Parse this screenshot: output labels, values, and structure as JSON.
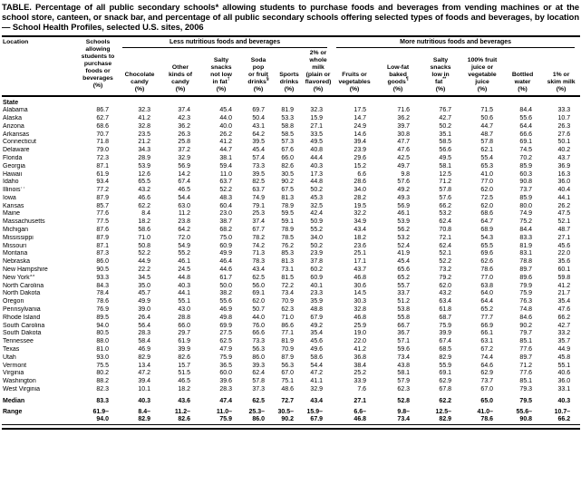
{
  "title": "TABLE. Percentage of all public secondary schools* allowing students to purchase foods and beverages from vending machines or at the school store, canteen, or snack bar, and percentage of all public secondary schools offering selected types of foods and beverages, by location — School Health Profiles, selected U.S. sites, 2006",
  "table": {
    "location_header": "Location",
    "schools_header": "Schools\nallowing\nstudents to\npurchase\nfoods or\nbeverages\n(%)",
    "groups": [
      {
        "label": "Less nutritious foods and beverages"
      },
      {
        "label": "More nutritious foods and beverages"
      }
    ],
    "columns": [
      {
        "id": "chocolate-candy",
        "lines": [
          "Chocolate",
          "candy",
          "(%)"
        ]
      },
      {
        "id": "other-candy",
        "lines": [
          "Other",
          "kinds of",
          "candy",
          "(%)"
        ]
      },
      {
        "id": "salty-snacks-not-low-fat",
        "lines": [
          "Salty",
          "snacks",
          "not low",
          "in fat†",
          "(%)"
        ]
      },
      {
        "id": "soda-pop-fruit-drinks",
        "lines": [
          "Soda",
          "pop",
          "or fruit",
          "drinks§",
          "(%)"
        ]
      },
      {
        "id": "sports-drinks",
        "lines": [
          "Sports",
          "drinks",
          "(%)"
        ]
      },
      {
        "id": "two-pct-whole-milk",
        "lines": [
          "2% or",
          "whole",
          "milk",
          "(plain or",
          "flavored)",
          "(%)"
        ]
      },
      {
        "id": "fruits-vegetables",
        "lines": [
          "Fruits or",
          "vegetables",
          "(%)"
        ]
      },
      {
        "id": "low-fat-baked-goods",
        "lines": [
          "Low-fat",
          "baked",
          "goods¶",
          "(%)"
        ]
      },
      {
        "id": "salty-snacks-low-fat",
        "lines": [
          "Salty",
          "snacks",
          "low in",
          "fat**",
          "(%)"
        ]
      },
      {
        "id": "fruit-vegetable-juice",
        "lines": [
          "100% fruit",
          "juice or",
          "vegetable",
          "juice",
          "(%)"
        ]
      },
      {
        "id": "bottled-water",
        "lines": [
          "Bottled",
          "water",
          "(%)"
        ]
      },
      {
        "id": "skim-milk",
        "lines": [
          "1% or",
          "skim milk",
          "(%)"
        ]
      }
    ],
    "section_label": "State",
    "rows": [
      {
        "location": "Alabama",
        "values": [
          "86.7",
          "32.3",
          "37.4",
          "45.4",
          "69.7",
          "81.9",
          "32.3",
          "17.5",
          "71.6",
          "76.7",
          "71.5",
          "84.4",
          "33.3"
        ]
      },
      {
        "location": "Alaska",
        "values": [
          "62.7",
          "41.2",
          "42.3",
          "44.0",
          "50.4",
          "53.3",
          "15.9",
          "14.7",
          "36.2",
          "42.7",
          "50.6",
          "55.6",
          "10.7"
        ]
      },
      {
        "location": "Arizona",
        "values": [
          "68.6",
          "32.8",
          "36.2",
          "40.0",
          "43.1",
          "58.8",
          "27.1",
          "24.9",
          "39.7",
          "50.2",
          "44.7",
          "64.4",
          "26.3"
        ]
      },
      {
        "location": "Arkansas",
        "values": [
          "70.7",
          "23.5",
          "26.3",
          "26.2",
          "64.2",
          "58.5",
          "33.5",
          "14.6",
          "30.8",
          "35.1",
          "48.7",
          "66.6",
          "27.6"
        ]
      },
      {
        "location": "Connecticut",
        "values": [
          "71.8",
          "21.2",
          "25.8",
          "41.2",
          "39.5",
          "57.3",
          "49.5",
          "39.4",
          "47.7",
          "58.5",
          "57.8",
          "69.1",
          "50.1"
        ]
      },
      {
        "location": "Delaware",
        "values": [
          "79.0",
          "34.3",
          "37.2",
          "44.7",
          "45.4",
          "67.6",
          "40.8",
          "23.9",
          "47.6",
          "56.6",
          "62.1",
          "74.5",
          "40.2"
        ]
      },
      {
        "location": "Florida",
        "values": [
          "72.3",
          "28.9",
          "32.9",
          "38.1",
          "57.4",
          "66.0",
          "44.4",
          "29.6",
          "42.5",
          "49.5",
          "55.4",
          "70.2",
          "43.7"
        ]
      },
      {
        "location": "Georgia",
        "values": [
          "87.1",
          "53.9",
          "56.9",
          "59.4",
          "73.3",
          "82.6",
          "40.3",
          "15.2",
          "49.7",
          "58.1",
          "65.3",
          "85.9",
          "36.9"
        ]
      },
      {
        "location": "Hawaii",
        "values": [
          "61.9",
          "12.6",
          "14.2",
          "11.0",
          "39.5",
          "30.5",
          "17.3",
          "6.6",
          "9.8",
          "12.5",
          "41.0",
          "60.3",
          "16.3"
        ]
      },
      {
        "location": "Idaho",
        "values": [
          "93.4",
          "65.5",
          "67.4",
          "63.7",
          "82.5",
          "90.2",
          "44.8",
          "28.6",
          "57.6",
          "71.2",
          "77.0",
          "90.8",
          "36.0"
        ]
      },
      {
        "location": "Illinois††",
        "values": [
          "77.2",
          "43.2",
          "46.5",
          "52.2",
          "63.7",
          "67.5",
          "50.2",
          "34.0",
          "49.2",
          "57.8",
          "62.0",
          "73.7",
          "40.4"
        ]
      },
      {
        "location": "Iowa",
        "values": [
          "87.9",
          "46.6",
          "54.4",
          "48.3",
          "74.9",
          "81.3",
          "45.3",
          "28.2",
          "49.3",
          "57.6",
          "72.5",
          "85.9",
          "44.1"
        ]
      },
      {
        "location": "Kansas",
        "values": [
          "85.7",
          "62.2",
          "63.0",
          "60.4",
          "79.1",
          "78.9",
          "32.5",
          "19.5",
          "56.9",
          "66.2",
          "62.0",
          "80.0",
          "26.2"
        ]
      },
      {
        "location": "Maine",
        "values": [
          "77.6",
          "8.4",
          "11.2",
          "23.0",
          "25.3",
          "59.5",
          "42.4",
          "32.2",
          "46.1",
          "53.2",
          "68.6",
          "74.9",
          "47.5"
        ]
      },
      {
        "location": "Massachusetts",
        "values": [
          "77.5",
          "18.2",
          "23.8",
          "38.7",
          "37.4",
          "59.1",
          "50.9",
          "34.9",
          "53.9",
          "62.4",
          "64.7",
          "75.2",
          "52.1"
        ]
      },
      {
        "location": "Michigan",
        "values": [
          "87.6",
          "58.6",
          "64.2",
          "68.2",
          "67.7",
          "78.9",
          "55.2",
          "43.4",
          "56.2",
          "70.8",
          "68.9",
          "84.4",
          "48.7"
        ]
      },
      {
        "location": "Mississippi",
        "values": [
          "87.9",
          "71.0",
          "72.0",
          "75.0",
          "78.2",
          "78.5",
          "34.0",
          "18.2",
          "53.2",
          "72.1",
          "54.3",
          "83.3",
          "27.1"
        ]
      },
      {
        "location": "Missouri",
        "values": [
          "87.1",
          "50.8",
          "54.9",
          "60.9",
          "74.2",
          "76.2",
          "50.2",
          "23.6",
          "52.4",
          "62.4",
          "65.5",
          "81.9",
          "45.6"
        ]
      },
      {
        "location": "Montana",
        "values": [
          "87.3",
          "52.2",
          "55.2",
          "49.9",
          "71.3",
          "85.3",
          "23.9",
          "25.1",
          "41.9",
          "52.1",
          "69.6",
          "83.1",
          "22.0"
        ]
      },
      {
        "location": "Nebraska",
        "values": [
          "86.0",
          "44.9",
          "46.1",
          "46.4",
          "78.3",
          "81.3",
          "37.8",
          "17.1",
          "45.4",
          "52.2",
          "62.6",
          "78.8",
          "35.6"
        ]
      },
      {
        "location": "New Hampshire",
        "values": [
          "90.5",
          "22.2",
          "24.5",
          "44.6",
          "43.4",
          "73.1",
          "60.2",
          "43.7",
          "65.6",
          "73.2",
          "78.6",
          "89.7",
          "60.1"
        ]
      },
      {
        "location": "New York§§",
        "values": [
          "93.3",
          "34.5",
          "44.8",
          "61.7",
          "62.5",
          "81.5",
          "60.9",
          "46.8",
          "65.2",
          "79.2",
          "77.0",
          "89.6",
          "59.8"
        ]
      },
      {
        "location": "North Carolina",
        "values": [
          "84.3",
          "35.0",
          "40.3",
          "50.0",
          "56.0",
          "72.2",
          "40.1",
          "30.6",
          "55.7",
          "62.0",
          "63.8",
          "79.9",
          "41.2"
        ]
      },
      {
        "location": "North Dakota",
        "values": [
          "78.4",
          "45.7",
          "44.1",
          "38.2",
          "69.1",
          "73.4",
          "23.3",
          "14.5",
          "33.7",
          "43.2",
          "64.0",
          "75.9",
          "21.7"
        ]
      },
      {
        "location": "Oregon",
        "values": [
          "78.6",
          "49.9",
          "55.1",
          "55.6",
          "62.0",
          "70.9",
          "35.9",
          "30.3",
          "51.2",
          "63.4",
          "64.4",
          "76.3",
          "35.4"
        ]
      },
      {
        "location": "Pennsylvania",
        "values": [
          "76.9",
          "39.0",
          "43.0",
          "46.9",
          "50.7",
          "62.3",
          "48.8",
          "32.8",
          "53.8",
          "61.8",
          "65.2",
          "74.8",
          "47.6"
        ]
      },
      {
        "location": "Rhode Island",
        "values": [
          "89.5",
          "26.4",
          "28.8",
          "49.8",
          "44.0",
          "71.0",
          "67.9",
          "46.8",
          "55.8",
          "68.7",
          "77.7",
          "84.6",
          "66.2"
        ]
      },
      {
        "location": "South Carolina",
        "values": [
          "94.0",
          "56.4",
          "66.0",
          "69.9",
          "76.0",
          "86.6",
          "49.2",
          "25.9",
          "66.7",
          "75.9",
          "66.9",
          "90.2",
          "42.7"
        ]
      },
      {
        "location": "South Dakota",
        "values": [
          "80.5",
          "28.3",
          "29.7",
          "27.5",
          "66.6",
          "77.1",
          "35.4",
          "19.0",
          "36.7",
          "39.9",
          "66.1",
          "79.7",
          "33.2"
        ]
      },
      {
        "location": "Tennessee",
        "values": [
          "88.0",
          "58.4",
          "61.9",
          "62.5",
          "73.3",
          "81.9",
          "45.6",
          "22.0",
          "57.1",
          "67.4",
          "63.1",
          "85.1",
          "35.7"
        ]
      },
      {
        "location": "Texas",
        "values": [
          "81.0",
          "46.9",
          "39.9",
          "47.9",
          "56.3",
          "70.9",
          "49.6",
          "41.2",
          "59.6",
          "68.5",
          "67.2",
          "77.6",
          "44.9"
        ]
      },
      {
        "location": "Utah",
        "values": [
          "93.0",
          "82.9",
          "82.6",
          "75.9",
          "86.0",
          "87.9",
          "58.6",
          "36.8",
          "73.4",
          "82.9",
          "74.4",
          "89.7",
          "45.8"
        ]
      },
      {
        "location": "Vermont",
        "values": [
          "75.5",
          "13.4",
          "15.7",
          "36.5",
          "39.3",
          "56.3",
          "54.4",
          "38.4",
          "43.8",
          "55.9",
          "64.6",
          "71.2",
          "55.1"
        ]
      },
      {
        "location": "Virginia",
        "values": [
          "80.2",
          "47.2",
          "51.5",
          "60.0",
          "62.4",
          "67.0",
          "47.2",
          "25.2",
          "58.1",
          "69.1",
          "62.9",
          "77.6",
          "40.6"
        ]
      },
      {
        "location": "Washington",
        "values": [
          "88.2",
          "39.4",
          "46.5",
          "39.6",
          "57.8",
          "75.1",
          "41.1",
          "33.9",
          "57.9",
          "62.9",
          "73.7",
          "85.1",
          "36.0"
        ]
      },
      {
        "location": "West Virginia",
        "values": [
          "82.3",
          "10.1",
          "18.2",
          "28.3",
          "37.3",
          "48.6",
          "32.9",
          "7.6",
          "62.3",
          "67.8",
          "67.0",
          "79.3",
          "33.1"
        ]
      }
    ],
    "median": {
      "label": "Median",
      "values": [
        "83.3",
        "40.3",
        "43.6",
        "47.4",
        "62.5",
        "72.7",
        "43.4",
        "27.1",
        "52.8",
        "62.2",
        "65.0",
        "79.5",
        "40.3"
      ]
    },
    "range": {
      "label": "Range",
      "from": [
        "61.9–",
        "8.4–",
        "11.2–",
        "11.0–",
        "25.3–",
        "30.5–",
        "15.9–",
        "6.6–",
        "9.8–",
        "12.5–",
        "41.0–",
        "55.6–",
        "10.7–"
      ],
      "to": [
        "94.0",
        "82.9",
        "82.6",
        "75.9",
        "86.0",
        "90.2",
        "67.9",
        "46.8",
        "73.4",
        "82.9",
        "78.6",
        "90.8",
        "66.2"
      ]
    }
  }
}
